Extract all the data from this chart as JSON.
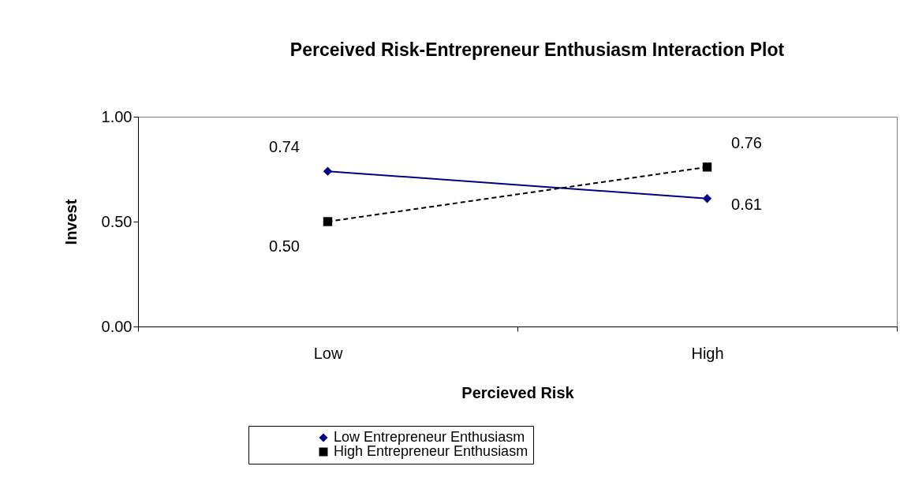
{
  "chart_data": {
    "type": "line",
    "title": "Perceived Risk-Entrepreneur Enthusiasm Interaction Plot",
    "xlabel": "Percieved Risk",
    "ylabel": "Invest",
    "categories": [
      "Low",
      "High"
    ],
    "series": [
      {
        "name": "Low Entrepreneur Enthusiasm",
        "color": "#000080",
        "marker": "diamond",
        "line_style": "solid",
        "values": [
          0.74,
          0.61
        ],
        "value_labels": [
          "0.74",
          "0.61"
        ]
      },
      {
        "name": "High Entrepreneur Enthusiasm",
        "color": "#000000",
        "marker": "square",
        "line_style": "dashed",
        "values": [
          0.5,
          0.76
        ],
        "value_labels": [
          "0.50",
          "0.76"
        ]
      }
    ],
    "ylim": [
      0,
      1
    ],
    "yticks": [
      {
        "value": 0,
        "label": "0.00"
      },
      {
        "value": 0.5,
        "label": "0.50"
      },
      {
        "value": 1,
        "label": "1.00"
      }
    ],
    "grid": false,
    "legend": "bottom"
  }
}
